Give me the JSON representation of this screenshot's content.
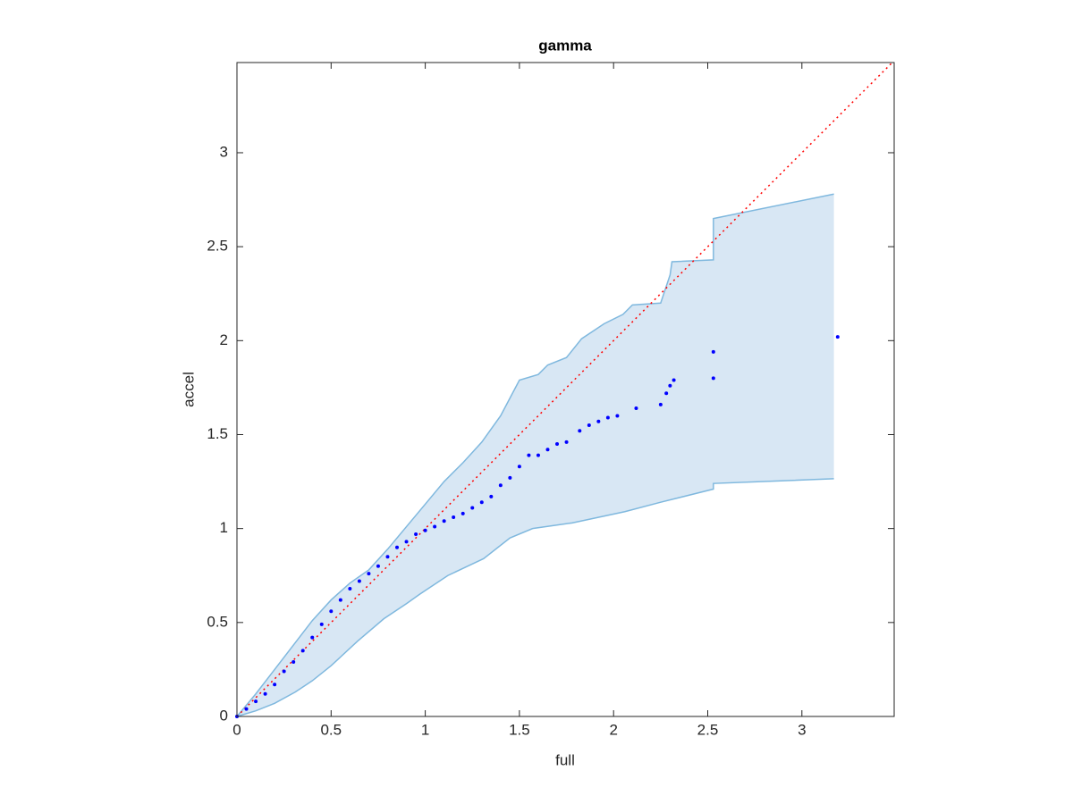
{
  "chart_data": {
    "type": "scatter",
    "title": "gamma",
    "x_label": "full",
    "y_label": "accel",
    "xlim": [
      0,
      3.49
    ],
    "ylim": [
      0,
      3.48
    ],
    "xticks": [
      0,
      0.5,
      1,
      1.5,
      2,
      2.5,
      3
    ],
    "yticks": [
      0,
      0.5,
      1,
      1.5,
      2,
      2.5,
      3
    ],
    "point_color": "#0000ff",
    "diagonal": true,
    "diagonal_color": "#ff0000",
    "band_color": "#7fb8de",
    "band_fill": "#d8e7f4",
    "x": [
      0,
      0.05,
      0.1,
      0.15,
      0.2,
      0.25,
      0.3,
      0.35,
      0.4,
      0.45,
      0.5,
      0.55,
      0.6,
      0.65,
      0.7,
      0.75,
      0.8,
      0.85,
      0.9,
      0.95,
      1.0,
      1.05,
      1.1,
      1.15,
      1.2,
      1.25,
      1.3,
      1.35,
      1.4,
      1.45,
      1.5,
      1.55,
      1.6,
      1.65,
      1.7,
      1.75,
      1.82,
      1.87,
      1.92,
      1.97,
      2.02,
      2.12,
      2.25,
      2.28,
      2.3,
      2.32,
      2.53,
      2.53,
      3.19
    ],
    "y": [
      0,
      0.04,
      0.08,
      0.12,
      0.17,
      0.24,
      0.29,
      0.35,
      0.42,
      0.49,
      0.56,
      0.62,
      0.68,
      0.72,
      0.76,
      0.8,
      0.85,
      0.9,
      0.93,
      0.97,
      0.99,
      1.01,
      1.04,
      1.06,
      1.08,
      1.11,
      1.14,
      1.17,
      1.23,
      1.27,
      1.33,
      1.39,
      1.39,
      1.42,
      1.45,
      1.46,
      1.52,
      1.55,
      1.57,
      1.59,
      1.6,
      1.64,
      1.66,
      1.72,
      1.76,
      1.79,
      1.8,
      1.94,
      2.02
    ],
    "band_upper": {
      "x": [
        0,
        0.1,
        0.2,
        0.3,
        0.4,
        0.5,
        0.6,
        0.7,
        0.8,
        0.9,
        1.0,
        1.1,
        1.2,
        1.3,
        1.4,
        1.5,
        1.6,
        1.65,
        1.75,
        1.83,
        1.95,
        2.05,
        2.1,
        2.25,
        2.3,
        2.31,
        2.53,
        2.53,
        3.17
      ],
      "y": [
        0,
        0.12,
        0.25,
        0.38,
        0.51,
        0.62,
        0.71,
        0.78,
        0.89,
        1.01,
        1.13,
        1.25,
        1.35,
        1.46,
        1.6,
        1.79,
        1.82,
        1.87,
        1.91,
        2.01,
        2.09,
        2.14,
        2.19,
        2.2,
        2.35,
        2.42,
        2.43,
        2.65,
        2.78
      ]
    },
    "band_lower": {
      "x": [
        0,
        0.1,
        0.2,
        0.31,
        0.4,
        0.5,
        0.64,
        0.78,
        0.9,
        0.97,
        1.12,
        1.31,
        1.45,
        1.57,
        1.78,
        2.06,
        2.25,
        2.53,
        2.53,
        3.17
      ],
      "y": [
        0,
        0.03,
        0.07,
        0.13,
        0.19,
        0.27,
        0.4,
        0.52,
        0.6,
        0.65,
        0.75,
        0.84,
        0.95,
        1.0,
        1.03,
        1.09,
        1.14,
        1.21,
        1.24,
        1.265
      ]
    }
  }
}
